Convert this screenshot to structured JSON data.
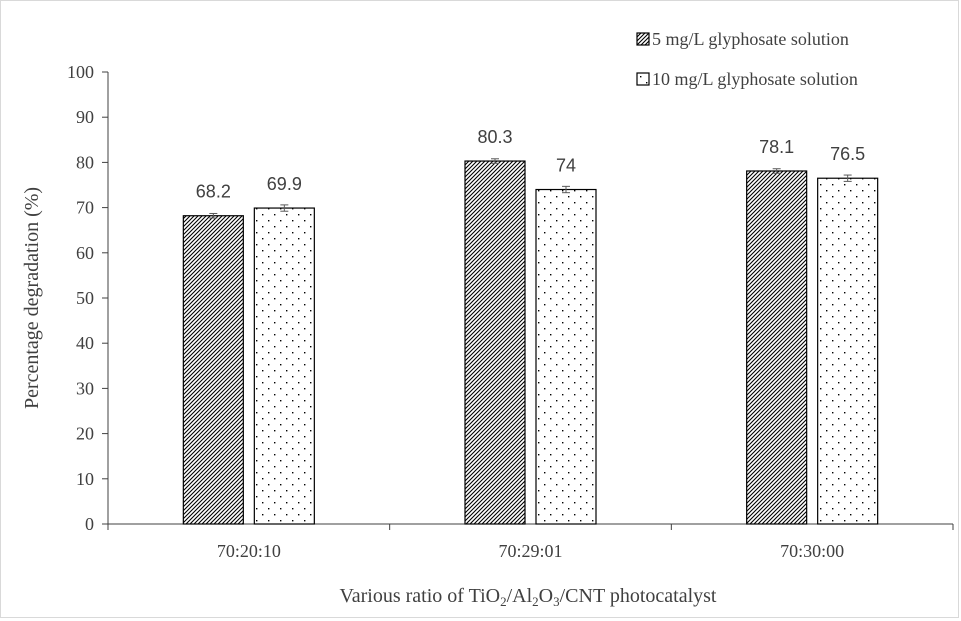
{
  "chart_data": {
    "type": "bar",
    "categories": [
      "70:20:10",
      "70:29:01",
      "70:30:00"
    ],
    "series": [
      {
        "name": "5 mg/L glyphosate solution",
        "values": [
          68.2,
          80.3,
          78.1
        ],
        "errors": [
          0.5,
          0.5,
          0.5
        ],
        "pattern": "diagonal-hatch"
      },
      {
        "name": "10 mg/L glyphosate solution",
        "values": [
          69.9,
          74,
          76.5
        ],
        "errors": [
          0.7,
          0.7,
          0.7
        ],
        "pattern": "dots"
      }
    ],
    "data_labels": [
      [
        "68.2",
        "80.3",
        "78.1"
      ],
      [
        "69.9",
        "74",
        "76.5"
      ]
    ],
    "xlabel": {
      "parts": [
        {
          "text": "Various ratio of TiO",
          "sub": false
        },
        {
          "text": "2",
          "sub": true
        },
        {
          "text": "/Al",
          "sub": false
        },
        {
          "text": "2",
          "sub": true
        },
        {
          "text": "O",
          "sub": false
        },
        {
          "text": "3",
          "sub": true
        },
        {
          "text": "/CNT photocatalyst",
          "sub": false
        }
      ]
    },
    "ylabel": "Percentage degradation (%)",
    "ylim": [
      0,
      100
    ],
    "yticks": [
      0,
      10,
      20,
      30,
      40,
      50,
      60,
      70,
      80,
      90,
      100
    ],
    "grid": false,
    "legend_position": "top-right",
    "colors": {
      "axis": "#404040",
      "bar_stroke": "#000000",
      "fill": "#ffffff",
      "text": "#404040"
    }
  }
}
